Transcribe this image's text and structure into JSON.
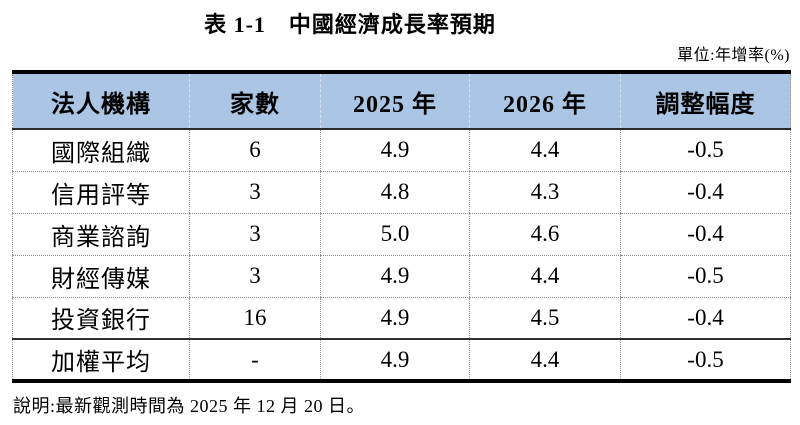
{
  "page": {
    "title": "表 1-1　中國經濟成長率預期",
    "unit_note": "單位:年增率(%)",
    "footnote": "說明:最新觀測時間為 2025 年 12 月 20 日。"
  },
  "colors": {
    "header_bg": "#aac6e4",
    "border_heavy": "#000000",
    "border_dotted": "#979797",
    "text": "#000000"
  },
  "table": {
    "columns": [
      "法人機構",
      "家數",
      "2025 年",
      "2026 年",
      "調整幅度"
    ],
    "rows": [
      [
        "國際組織",
        "6",
        "4.9",
        "4.4",
        "-0.5"
      ],
      [
        "信用評等",
        "3",
        "4.8",
        "4.3",
        "-0.4"
      ],
      [
        "商業諮詢",
        "3",
        "5.0",
        "4.6",
        "-0.4"
      ],
      [
        "財經傳媒",
        "3",
        "4.9",
        "4.4",
        "-0.5"
      ],
      [
        "投資銀行",
        "16",
        "4.9",
        "4.5",
        "-0.4"
      ],
      [
        "加權平均",
        "-",
        "4.9",
        "4.4",
        "-0.5"
      ]
    ]
  }
}
